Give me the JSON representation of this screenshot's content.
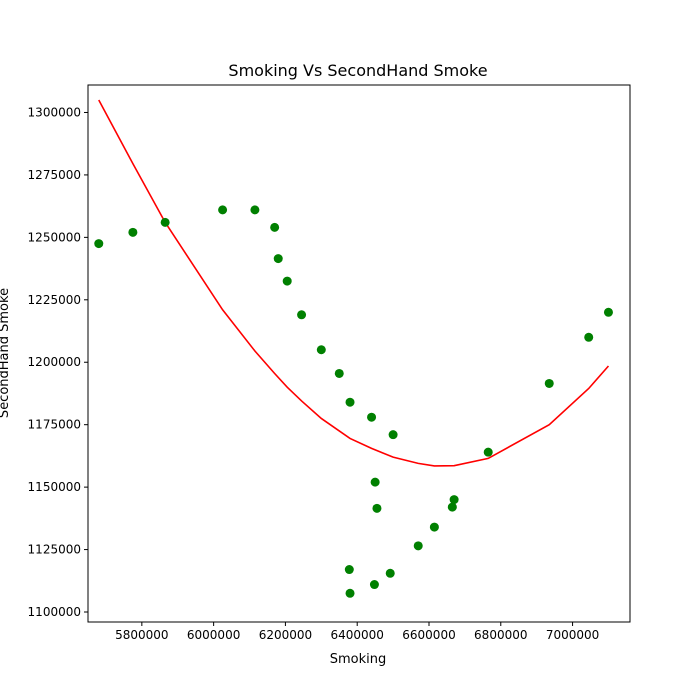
{
  "chart_data": {
    "type": "scatter",
    "title": "Smoking Vs SecondHand Smoke",
    "xlabel": "Smoking",
    "ylabel": "SecondHand Smoke",
    "xlim": [
      5650000,
      7160000
    ],
    "ylim": [
      1096000,
      1311000
    ],
    "xticks": [
      5800000,
      6000000,
      6200000,
      6400000,
      6600000,
      6800000,
      7000000
    ],
    "yticks": [
      1100000,
      1125000,
      1150000,
      1175000,
      1200000,
      1225000,
      1250000,
      1275000,
      1300000
    ],
    "grid": false,
    "colors": {
      "points": "#008000",
      "curve": "#ff0000"
    },
    "series": [
      {
        "type": "scatter",
        "points": [
          [
            5680000,
            1247500
          ],
          [
            5775000,
            1252000
          ],
          [
            5865000,
            1256000
          ],
          [
            6025000,
            1261000
          ],
          [
            6115000,
            1261000
          ],
          [
            6170000,
            1254000
          ],
          [
            6180000,
            1241500
          ],
          [
            6205000,
            1232500
          ],
          [
            6245000,
            1219000
          ],
          [
            6300000,
            1205000
          ],
          [
            6350000,
            1195500
          ],
          [
            6380000,
            1184000
          ],
          [
            6440000,
            1178000
          ],
          [
            6500000,
            1171000
          ],
          [
            6450000,
            1152000
          ],
          [
            6455000,
            1141500
          ],
          [
            6665000,
            1142000
          ],
          [
            6670000,
            1145000
          ],
          [
            6615000,
            1134000
          ],
          [
            6570000,
            1126500
          ],
          [
            6378000,
            1117000
          ],
          [
            6380000,
            1107500
          ],
          [
            6448000,
            1111000
          ],
          [
            6492000,
            1115500
          ],
          [
            6765000,
            1164000
          ],
          [
            6935000,
            1191500
          ],
          [
            7045000,
            1210000
          ],
          [
            7100000,
            1220000
          ]
        ]
      },
      {
        "type": "line",
        "points": [
          [
            5680000,
            1305000
          ],
          [
            5775000,
            1279500
          ],
          [
            5865000,
            1256000
          ],
          [
            6025000,
            1221000
          ],
          [
            6115000,
            1204500
          ],
          [
            6170000,
            1195500
          ],
          [
            6205000,
            1190000
          ],
          [
            6245000,
            1184500
          ],
          [
            6300000,
            1177500
          ],
          [
            6350000,
            1172500
          ],
          [
            6380000,
            1169500
          ],
          [
            6440000,
            1165500
          ],
          [
            6500000,
            1162000
          ],
          [
            6570000,
            1159500
          ],
          [
            6615000,
            1158500
          ],
          [
            6670000,
            1158600
          ],
          [
            6765000,
            1161500
          ],
          [
            6935000,
            1175000
          ],
          [
            7045000,
            1189500
          ],
          [
            7100000,
            1198500
          ]
        ]
      }
    ]
  }
}
